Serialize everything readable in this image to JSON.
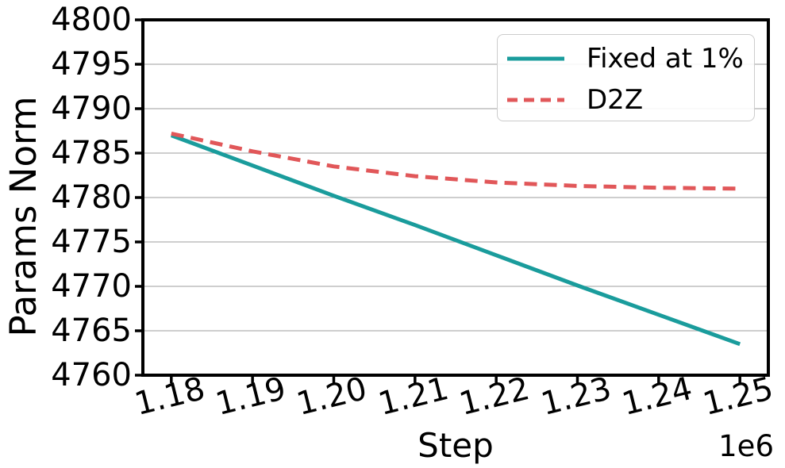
{
  "figure": {
    "background": "#ffffff",
    "text_color": "#000000",
    "spine_color": "#000000"
  },
  "chart_data": {
    "type": "line",
    "title": "",
    "xlabel": "Step",
    "ylabel": "Params Norm",
    "x_offset_label": "1e6",
    "xlim": [
      1.1765,
      1.2535
    ],
    "ylim": [
      4760,
      4800
    ],
    "grid": "horizontal",
    "grid_color": "#b0b0b0",
    "legend_position": "upper right",
    "x": [
      1.18,
      1.19,
      1.2,
      1.21,
      1.22,
      1.23,
      1.24,
      1.25
    ],
    "xtick_labels": [
      "1.18",
      "1.19",
      "1.20",
      "1.21",
      "1.22",
      "1.23",
      "1.24",
      "1.25"
    ],
    "yticks": [
      4760,
      4765,
      4770,
      4775,
      4780,
      4785,
      4790,
      4795,
      4800
    ],
    "ytick_labels": [
      "4760",
      "4765",
      "4770",
      "4775",
      "4780",
      "4785",
      "4790",
      "4795",
      "4800"
    ],
    "series": [
      {
        "name": "Fixed at 1%",
        "color": "#1a9c9c",
        "line_style": "solid",
        "values": [
          4787.0,
          4783.6,
          4780.2,
          4776.9,
          4773.5,
          4770.1,
          4766.8,
          4763.5
        ]
      },
      {
        "name": "D2Z",
        "color": "#e15759",
        "line_style": "dashed",
        "values": [
          4787.2,
          4785.2,
          4783.5,
          4782.4,
          4781.7,
          4781.3,
          4781.1,
          4781.0
        ]
      }
    ]
  }
}
